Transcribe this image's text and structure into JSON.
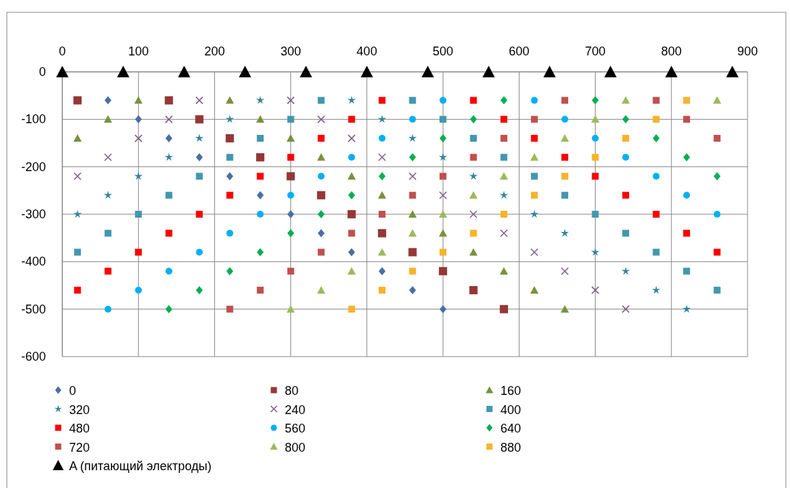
{
  "chart_data": {
    "type": "scatter",
    "xlim": [
      0,
      900
    ],
    "xticks": [
      0,
      100,
      200,
      300,
      400,
      500,
      600,
      700,
      800,
      900
    ],
    "ylim": [
      -600,
      0
    ],
    "yticks": [
      -600,
      -500,
      -400,
      -300,
      -200,
      -100,
      0
    ],
    "grid": true,
    "legend": "bottom",
    "series": [
      {
        "name": "0",
        "color": "#4a6fa5",
        "marker": "diamond",
        "x": [
          60,
          100,
          140,
          180,
          220,
          260,
          300,
          340,
          380,
          420,
          460,
          500
        ],
        "values": [
          -60,
          -100,
          -140,
          -180,
          -220,
          -260,
          -300,
          -340,
          -380,
          -420,
          -460,
          -500
        ]
      },
      {
        "name": "80",
        "color": "#953735",
        "marker": "square",
        "x": [
          20,
          140,
          180,
          220,
          260,
          300,
          340,
          380,
          420,
          460,
          500,
          540,
          580
        ],
        "values": [
          -60,
          -60,
          -100,
          -140,
          -180,
          -220,
          -260,
          -300,
          -340,
          -380,
          -420,
          -460,
          -500
        ]
      },
      {
        "name": "160",
        "color": "#77933c",
        "marker": "triangle",
        "x": [
          100,
          60,
          20,
          220,
          260,
          300,
          340,
          380,
          420,
          460,
          500,
          540,
          580,
          620,
          660
        ],
        "values": [
          -60,
          -100,
          -140,
          -60,
          -100,
          -140,
          -180,
          -220,
          -260,
          -300,
          -340,
          -380,
          -420,
          -460,
          -500
        ]
      },
      {
        "name": "320",
        "color": "#31859c",
        "marker": "star",
        "x": [
          260,
          220,
          180,
          140,
          100,
          60,
          20,
          380,
          420,
          460,
          500,
          540,
          580,
          620,
          660,
          700,
          740,
          780,
          820
        ],
        "values": [
          -60,
          -100,
          -140,
          -180,
          -220,
          -260,
          -300,
          -60,
          -100,
          -140,
          -180,
          -220,
          -260,
          -300,
          -340,
          -380,
          -420,
          -460,
          -500
        ]
      },
      {
        "name": "240",
        "color": "#7f6084",
        "marker": "cross",
        "x": [
          180,
          140,
          100,
          60,
          20,
          300,
          340,
          380,
          420,
          460,
          500,
          540,
          580,
          620,
          660,
          700,
          740
        ],
        "values": [
          -60,
          -100,
          -140,
          -180,
          -220,
          -60,
          -100,
          -140,
          -180,
          -220,
          -260,
          -300,
          -340,
          -380,
          -420,
          -460,
          -500
        ]
      },
      {
        "name": "400",
        "color": "#4198af",
        "marker": "square",
        "x": [
          340,
          300,
          260,
          220,
          180,
          140,
          100,
          60,
          20,
          460,
          500,
          540,
          580,
          620,
          660,
          700,
          740,
          780,
          820,
          860
        ],
        "values": [
          -60,
          -100,
          -140,
          -180,
          -220,
          -260,
          -300,
          -340,
          -380,
          -60,
          -100,
          -140,
          -180,
          -220,
          -260,
          -300,
          -340,
          -380,
          -420,
          -460
        ]
      },
      {
        "name": "480",
        "color": "#ff0000",
        "marker": "square",
        "x": [
          420,
          380,
          340,
          300,
          260,
          220,
          180,
          140,
          100,
          60,
          20,
          540,
          580,
          620,
          660,
          700,
          740,
          780,
          820,
          860
        ],
        "values": [
          -60,
          -100,
          -140,
          -180,
          -220,
          -260,
          -300,
          -340,
          -380,
          -420,
          -460,
          -60,
          -100,
          -140,
          -180,
          -220,
          -260,
          -300,
          -340,
          -380
        ]
      },
      {
        "name": "560",
        "color": "#00b0f0",
        "marker": "circle",
        "x": [
          500,
          460,
          420,
          380,
          340,
          300,
          260,
          220,
          180,
          140,
          100,
          60,
          620,
          660,
          700,
          740,
          780,
          820,
          860
        ],
        "values": [
          -60,
          -100,
          -140,
          -180,
          -220,
          -260,
          -300,
          -340,
          -380,
          -420,
          -460,
          -500,
          -60,
          -100,
          -140,
          -180,
          -220,
          -260,
          -300
        ]
      },
      {
        "name": "640",
        "color": "#00b050",
        "marker": "diamond",
        "x": [
          580,
          540,
          500,
          460,
          420,
          380,
          340,
          300,
          260,
          220,
          180,
          140,
          700,
          740,
          780,
          820,
          860
        ],
        "values": [
          -60,
          -100,
          -140,
          -180,
          -220,
          -260,
          -300,
          -340,
          -380,
          -420,
          -460,
          -500,
          -60,
          -100,
          -140,
          -180,
          -220
        ]
      },
      {
        "name": "720",
        "color": "#c0504d",
        "marker": "square",
        "x": [
          660,
          620,
          580,
          540,
          500,
          460,
          420,
          380,
          340,
          300,
          260,
          220,
          780,
          820,
          860
        ],
        "values": [
          -60,
          -100,
          -140,
          -180,
          -220,
          -260,
          -300,
          -340,
          -380,
          -420,
          -460,
          -500,
          -60,
          -100,
          -140
        ]
      },
      {
        "name": "800",
        "color": "#9bbb59",
        "marker": "triangle",
        "x": [
          740,
          700,
          660,
          620,
          580,
          540,
          500,
          460,
          420,
          380,
          340,
          300,
          860
        ],
        "values": [
          -60,
          -100,
          -140,
          -180,
          -220,
          -260,
          -300,
          -340,
          -380,
          -420,
          -460,
          -500,
          -60
        ]
      },
      {
        "name": "880",
        "color": "#f7b32b",
        "marker": "square",
        "x": [
          820,
          780,
          740,
          700,
          660,
          620,
          580,
          540,
          500,
          460,
          420,
          380
        ],
        "values": [
          -60,
          -100,
          -140,
          -180,
          -220,
          -260,
          -300,
          -340,
          -380,
          -420,
          -460,
          -500
        ]
      },
      {
        "name": "A (питающий электроды)",
        "color": "#000000",
        "marker": "triangle",
        "x": [
          0,
          80,
          160,
          240,
          320,
          400,
          480,
          560,
          640,
          720,
          800,
          880
        ],
        "values": [
          0,
          0,
          0,
          0,
          0,
          0,
          0,
          0,
          0,
          0,
          0,
          0
        ]
      }
    ]
  }
}
